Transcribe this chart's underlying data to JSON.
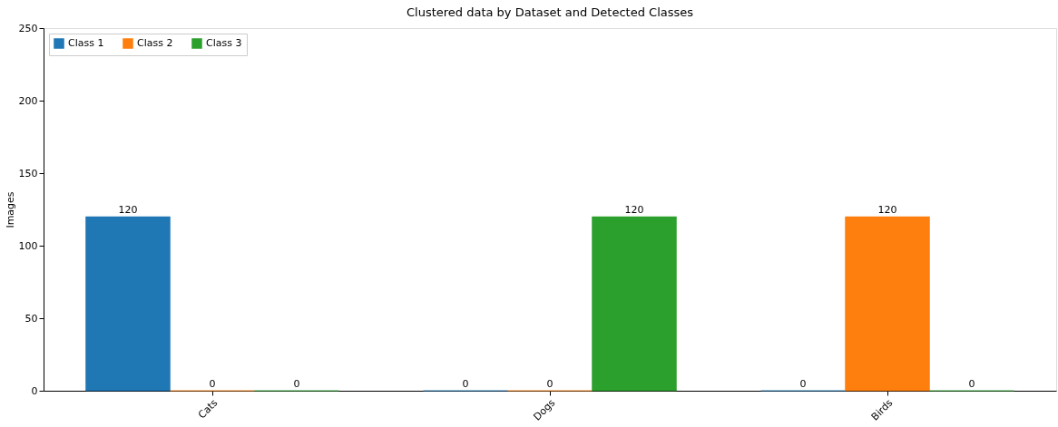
{
  "chart_data": {
    "type": "bar",
    "title": "Clustered data by Dataset and Detected Classes",
    "ylabel": "Images",
    "categories": [
      "Cats",
      "Dogs",
      "Birds"
    ],
    "series": [
      {
        "name": "Class 1",
        "color": "#1f77b4",
        "values": [
          120,
          0,
          0
        ]
      },
      {
        "name": "Class 2",
        "color": "#ff7f0e",
        "values": [
          0,
          0,
          120
        ]
      },
      {
        "name": "Class 3",
        "color": "#2ca02c",
        "values": [
          0,
          120,
          0
        ]
      }
    ],
    "ylim": [
      0,
      250
    ],
    "yticks": [
      0,
      50,
      100,
      150,
      200,
      250
    ],
    "data_labels": true,
    "legend": "top left",
    "grid": false
  }
}
